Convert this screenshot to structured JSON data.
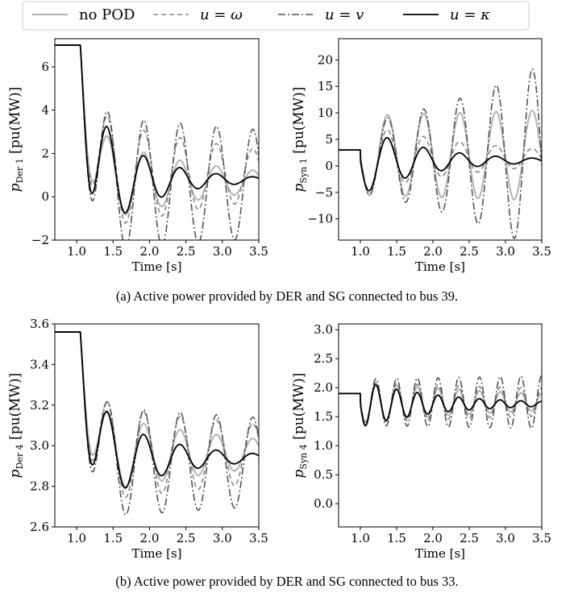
{
  "legend": {
    "items": [
      {
        "label": "no POD",
        "color": "#b3b3b3",
        "dash": "solid"
      },
      {
        "label": "u = ω",
        "color": "#888888",
        "dash": "dashed"
      },
      {
        "label": "u = v",
        "color": "#555555",
        "dash": "dashdot"
      },
      {
        "label": "u = κ",
        "color": "#000000",
        "dash": "solid"
      }
    ]
  },
  "captions": {
    "a": "(a) Active power provided by DER and SG connected to bus 39.",
    "b": "(b) Active power provided by DER and SG connected to bus 33."
  },
  "chart_data": [
    {
      "id": "a-left",
      "type": "line",
      "xlabel": "Time [s]",
      "ylabel": "p_Der 1 [pu(MW)]",
      "ylabel_main": "p",
      "ylabel_sub": "Der 1",
      "ylabel_unit": "[pu(MW)]",
      "xlim": [
        0.7,
        3.5
      ],
      "ylim": [
        -2,
        7.3
      ],
      "xticks": [
        "1.0",
        "1.5",
        "2.0",
        "2.5",
        "3.0",
        "3.5"
      ],
      "yticks": [
        "−2",
        "0",
        "2",
        "4",
        "6"
      ],
      "ytick_values": [
        -2,
        0,
        2,
        4,
        6
      ],
      "grid": false,
      "model": {
        "t0": 1.05,
        "init": 7.0,
        "final": 0.78,
        "tau": 0.12,
        "omega": 12.6,
        "series": [
          {
            "name": "no POD",
            "amp": 2.3,
            "damp": 0.62,
            "final": 0.7
          },
          {
            "name": "u = ω",
            "amp": 2.8,
            "damp": 0.35,
            "final": 1.0
          },
          {
            "name": "u = v",
            "amp": 3.2,
            "damp": 0.1,
            "final": 0.6
          },
          {
            "name": "u = κ",
            "amp": 3.6,
            "damp": 1.35,
            "final": 0.78
          }
        ]
      }
    },
    {
      "id": "a-right",
      "type": "line",
      "xlabel": "Time [s]",
      "ylabel": "p_Syn 1 [pu(MW)]",
      "ylabel_main": "p",
      "ylabel_sub": "Syn 1",
      "ylabel_unit": "[pu(MW)]",
      "xlim": [
        0.7,
        3.5
      ],
      "ylim": [
        -14,
        24
      ],
      "xticks": [
        "1.0",
        "1.5",
        "2.0",
        "2.5",
        "3.0",
        "3.5"
      ],
      "yticks": [
        "−10",
        "−5",
        "0",
        "5",
        "10",
        "15",
        "20"
      ],
      "ytick_values": [
        -10,
        -5,
        0,
        5,
        10,
        15,
        20
      ],
      "grid": false,
      "model": {
        "t0": 1.0,
        "init": 3.0,
        "final": 1.0,
        "tau": 0.0,
        "omega": 12.6,
        "series": [
          {
            "name": "no POD",
            "amp": 7.5,
            "damp": -0.05,
            "final": 2.0
          },
          {
            "name": "u = ω",
            "amp": 6.5,
            "damp": 0.55,
            "final": 1.5
          },
          {
            "name": "u = v",
            "amp": 6.5,
            "damp": -0.4,
            "final": 1.5
          },
          {
            "name": "u = κ",
            "amp": 6.5,
            "damp": 1.1,
            "final": 1.0
          }
        ]
      }
    },
    {
      "id": "b-left",
      "type": "line",
      "xlabel": "Time [s]",
      "ylabel": "p_Der 4 [pu(MW)]",
      "ylabel_main": "p",
      "ylabel_sub": "Der 4",
      "ylabel_unit": "[pu(MW)]",
      "xlim": [
        0.7,
        3.5
      ],
      "ylim": [
        2.6,
        3.6
      ],
      "xticks": [
        "1.0",
        "1.5",
        "2.0",
        "2.5",
        "3.0",
        "3.5"
      ],
      "yticks": [
        "2.6",
        "2.8",
        "3.0",
        "3.2",
        "3.4",
        "3.6"
      ],
      "ytick_values": [
        2.6,
        2.8,
        3.0,
        3.2,
        3.4,
        3.6
      ],
      "grid": false,
      "model": {
        "t0": 1.05,
        "init": 3.56,
        "final": 2.95,
        "tau": 0.12,
        "omega": 12.6,
        "series": [
          {
            "name": "no POD",
            "amp": 0.22,
            "damp": 0.45,
            "final": 2.96
          },
          {
            "name": "u = ω",
            "amp": 0.25,
            "damp": 0.22,
            "final": 2.96
          },
          {
            "name": "u = v",
            "amp": 0.28,
            "damp": 0.1,
            "final": 2.92
          },
          {
            "name": "u = κ",
            "amp": 0.3,
            "damp": 1.1,
            "final": 2.94
          }
        ]
      }
    },
    {
      "id": "b-right",
      "type": "line",
      "xlabel": "Time [s]",
      "ylabel": "p_Syn 4 [pu(MW)]",
      "ylabel_main": "p",
      "ylabel_sub": "Syn 4",
      "ylabel_unit": "[pu(MW)]",
      "xlim": [
        0.7,
        3.5
      ],
      "ylim": [
        -0.4,
        3.1
      ],
      "xticks": [
        "1.0",
        "1.5",
        "2.0",
        "2.5",
        "3.0",
        "3.5"
      ],
      "yticks": [
        "0.0",
        "0.5",
        "1.0",
        "1.5",
        "2.0",
        "2.5",
        "3.0"
      ],
      "ytick_values": [
        0.0,
        0.5,
        1.0,
        1.5,
        2.0,
        2.5,
        3.0
      ],
      "grid": false,
      "model": {
        "t0": 1.0,
        "init": 1.9,
        "final": 1.75,
        "tau": 0.0,
        "omega": 22.0,
        "series": [
          {
            "name": "no POD",
            "amp": 0.35,
            "damp": 0.35,
            "final": 1.75
          },
          {
            "name": "u = ω",
            "amp": 0.35,
            "damp": 0.15,
            "final": 1.75
          },
          {
            "name": "u = v",
            "amp": 0.4,
            "damp": -0.05,
            "final": 1.75
          },
          {
            "name": "u = κ",
            "amp": 0.4,
            "damp": 0.9,
            "final": 1.72
          }
        ]
      }
    }
  ]
}
